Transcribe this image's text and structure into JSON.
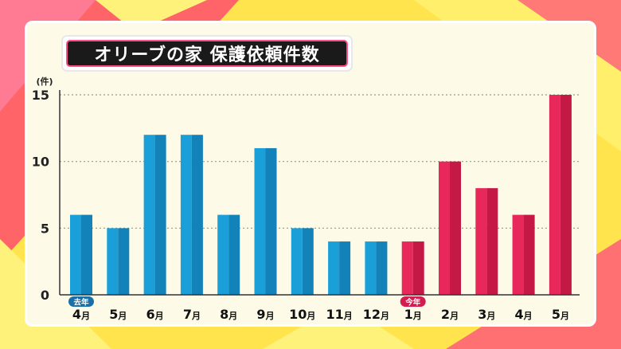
{
  "chart_data": {
    "type": "bar",
    "title": "オリーブの家 保護依頼件数",
    "ylabel": "(件)",
    "xlabel": "",
    "ylim": [
      0,
      15
    ],
    "yticks": [
      0,
      5,
      10,
      15
    ],
    "grid": true,
    "categories": [
      "4月",
      "5月",
      "6月",
      "7月",
      "8月",
      "9月",
      "10月",
      "11月",
      "12月",
      "1月",
      "2月",
      "3月",
      "4月",
      "5月"
    ],
    "series": [
      {
        "values": [
          6,
          5,
          12,
          12,
          6,
          11,
          5,
          4,
          4,
          null,
          null,
          null,
          null,
          null
        ],
        "color": "#1a9fd9",
        "color_dark": "#1282b8"
      },
      {
        "values": [
          null,
          null,
          null,
          null,
          null,
          null,
          null,
          null,
          null,
          4,
          10,
          8,
          6,
          15
        ],
        "color": "#e8285a",
        "color_dark": "#c41845"
      }
    ],
    "period_badges": [
      {
        "label": "去年",
        "category_index": 0,
        "color": "#1a6fa8"
      },
      {
        "label": "今年",
        "category_index": 9,
        "color": "#d11d4f"
      }
    ]
  }
}
